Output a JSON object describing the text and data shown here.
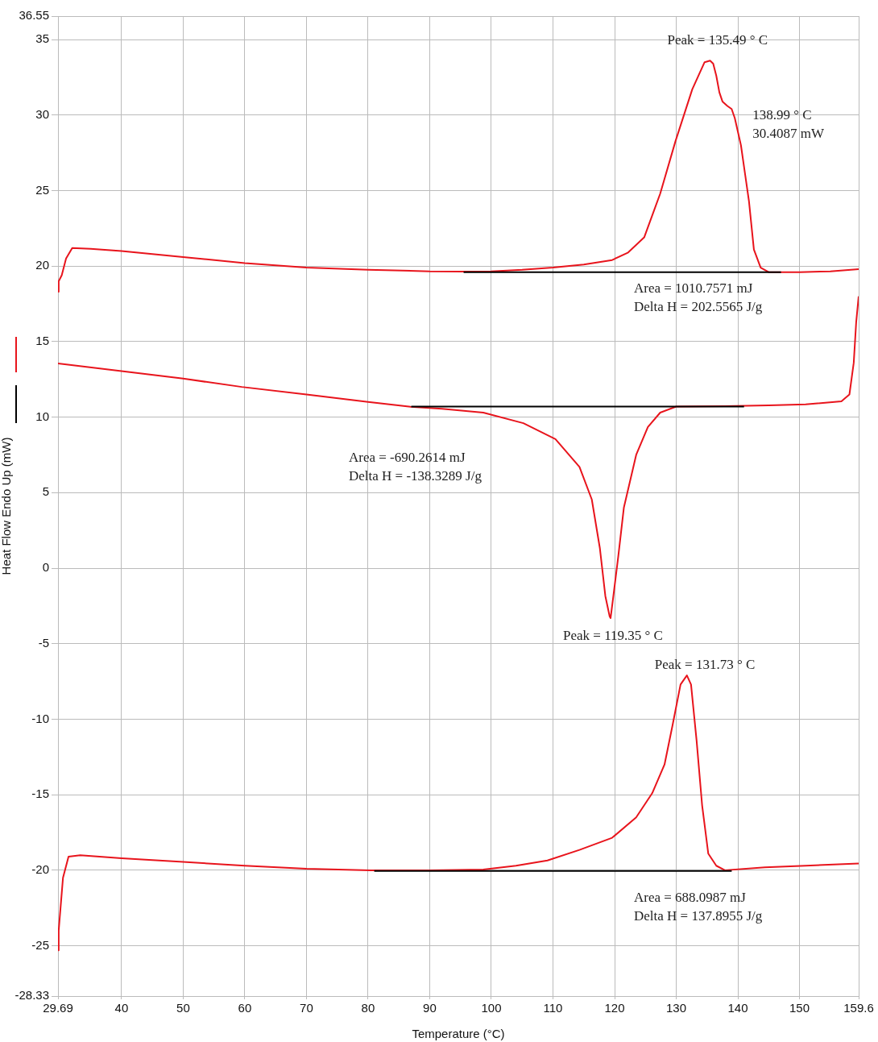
{
  "chart_data": {
    "type": "line",
    "xlabel": "Temperature (°C)",
    "ylabel": "Heat Flow Endo Up (mW)",
    "xlim": [
      29.69,
      159.6
    ],
    "xticks": [
      29.69,
      40,
      50,
      60,
      70,
      80,
      90,
      100,
      110,
      120,
      130,
      140,
      150,
      159.6
    ],
    "ylim": [
      -28.33,
      36.55
    ],
    "yticks": [
      -28.33,
      -25,
      -20,
      -15,
      -10,
      -5,
      0,
      5,
      10,
      15,
      20,
      25,
      30,
      35,
      36.55
    ],
    "grid": true,
    "legend": false,
    "marker": "none",
    "line_style": "solid",
    "series": [
      {
        "color": "#e8141c",
        "x": [
          29.69,
          29.8,
          30.3,
          31,
          32,
          35,
          40,
          50,
          60,
          70,
          80,
          85.6,
          90,
          95.4,
          100,
          105,
          110,
          115,
          119.6,
          122.2,
          124.8,
          127.4,
          129.9,
          132.6,
          134.6,
          135.49,
          136,
          136.5,
          137,
          137.5,
          138.3,
          138.99,
          139.5,
          140.5,
          141.2,
          141.8,
          142.6,
          143.7,
          145,
          150,
          155,
          159.6
        ],
        "values": [
          18.3,
          19,
          19.4,
          20.5,
          21.2,
          21.15,
          21,
          20.6,
          20.2,
          19.9,
          19.75,
          19.7,
          19.65,
          19.64,
          19.65,
          19.75,
          19.9,
          20.1,
          20.4,
          20.9,
          21.9,
          24.8,
          28.3,
          31.7,
          33.5,
          33.6,
          33.4,
          32.6,
          31.5,
          30.9,
          30.6,
          30.4,
          29.8,
          28,
          26,
          24.3,
          21.1,
          19.9,
          19.6,
          19.6,
          19.65,
          19.8
        ]
      },
      {
        "color": "#e8141c",
        "x": [
          29.69,
          40,
          50,
          59.5,
          70,
          80,
          86.9,
          92,
          98.7,
          105.2,
          110.4,
          114.3,
          116.3,
          117.6,
          118.5,
          119.2,
          119.35,
          119.8,
          120.6,
          121.5,
          123.5,
          125.4,
          127.4,
          130,
          137.9,
          145,
          151,
          156.8,
          158.1,
          158.8,
          159.2,
          159.6
        ],
        "values": [
          13.56,
          13.05,
          12.55,
          12,
          11.5,
          11,
          10.68,
          10.55,
          10.3,
          9.6,
          8.55,
          6.7,
          4.55,
          1.35,
          -1.85,
          -3.2,
          -3.3,
          -1.85,
          0.8,
          4,
          7.5,
          9.35,
          10.3,
          10.7,
          10.73,
          10.78,
          10.84,
          11.05,
          11.5,
          13.6,
          16.3,
          18
        ]
      },
      {
        "color": "#e8141c",
        "x": [
          29.69,
          29.8,
          30.5,
          31.4,
          33.3,
          40,
          50,
          60,
          70,
          80.4,
          90,
          98.7,
          104,
          109.1,
          114.3,
          119.6,
          123.5,
          126.1,
          128.1,
          129.4,
          130.7,
          131.73,
          132.4,
          133.3,
          134.2,
          135.2,
          136.5,
          137.9,
          144.4,
          151,
          159.6
        ],
        "values": [
          -25.3,
          -24,
          -20.5,
          -19.1,
          -19,
          -19.2,
          -19.45,
          -19.7,
          -19.9,
          -20,
          -20,
          -19.95,
          -19.7,
          -19.35,
          -18.65,
          -17.85,
          -16.5,
          -14.9,
          -13,
          -10.4,
          -7.7,
          -7.1,
          -7.7,
          -11.4,
          -15.7,
          -18.9,
          -19.7,
          -20,
          -19.8,
          -19.7,
          -19.55
        ]
      },
      {
        "color": "#000000",
        "x": [
          95.5,
          147
        ],
        "values": [
          19.6,
          19.6
        ]
      },
      {
        "color": "#000000",
        "x": [
          87,
          141
        ],
        "values": [
          10.7,
          10.7
        ]
      },
      {
        "color": "#000000",
        "x": [
          81,
          139
        ],
        "values": [
          -20.05,
          -20.05
        ]
      }
    ],
    "annotations": [
      {
        "text": "Peak = 135.49 ° C",
        "x": 135.49,
        "y": 33.6
      },
      {
        "text": "138.99 ° C\n30.4087 mW",
        "x": 138.99,
        "y": 30.4
      },
      "Area = 1010.7571 mJ\nDelta H = 202.5565 J/g",
      "Area = -690.2614 mJ\nDelta H = -138.3289 J/g",
      {
        "text": "Peak = 119.35 ° C",
        "x": 119.35,
        "y": -3.3
      },
      {
        "text": "Peak = 131.73 ° C",
        "x": 131.73,
        "y": -7.1
      },
      "Area = 688.0987 mJ\nDelta H = 137.8955 J/g"
    ]
  }
}
